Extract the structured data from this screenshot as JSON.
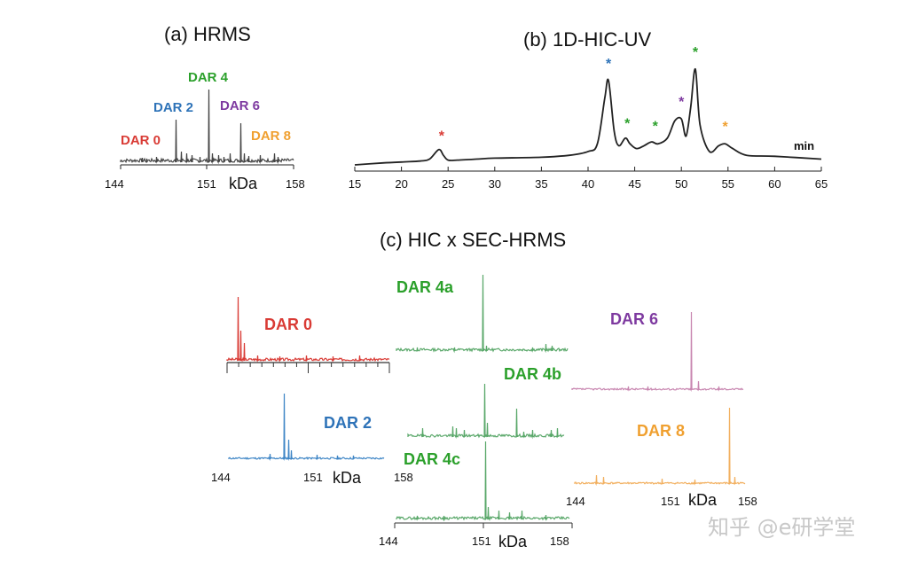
{
  "colors": {
    "dar0": "#d93b35",
    "dar2": "#2e73b8",
    "dar4": "#2ba02b",
    "dar6": "#7e3aa0",
    "dar8": "#f0a030",
    "trace": "#333333",
    "green_trace": "#5aa86a",
    "red_trace": "#d93b35",
    "blue_trace": "#3f86c6",
    "pink_trace": "#c886b0",
    "orange_trace": "#f2b060"
  },
  "panel_a": {
    "title": "(a) HRMS",
    "labels": [
      "DAR 0",
      "DAR 2",
      "DAR 4",
      "DAR 6",
      "DAR 8"
    ],
    "ticks": [
      "144",
      "151",
      "158"
    ],
    "unit": "kDa"
  },
  "panel_b": {
    "title": "(b) 1D-HIC-UV",
    "ticks": [
      "15",
      "20",
      "25",
      "30",
      "35",
      "40",
      "45",
      "50",
      "55",
      "60",
      "65"
    ],
    "xunit": "min",
    "star": "*"
  },
  "panel_c": {
    "title": "(c) HIC x SEC-HRMS",
    "dar0": "DAR 0",
    "dar2": "DAR 2",
    "dar4a": "DAR 4a",
    "dar4b": "DAR 4b",
    "dar4c": "DAR 4c",
    "dar6": "DAR 6",
    "dar8": "DAR 8",
    "ticks_left": [
      "144",
      "151",
      "158"
    ],
    "ticks_mid": [
      "144",
      "151",
      "158"
    ],
    "ticks_right": [
      "144",
      "151",
      "158"
    ],
    "unit": "kDa"
  },
  "watermark": "知乎 @e研学堂",
  "chart_data": [
    {
      "type": "line",
      "title": "(a) HRMS",
      "xlabel": "kDa",
      "xlim": [
        144,
        158
      ],
      "peaks": [
        {
          "name": "DAR 0",
          "x": 146.0
        },
        {
          "name": "DAR 2",
          "x": 148.9
        },
        {
          "name": "DAR 4",
          "x": 151.2
        },
        {
          "name": "DAR 6",
          "x": 153.6
        },
        {
          "name": "DAR 8",
          "x": 156.0
        }
      ]
    },
    {
      "type": "line",
      "title": "(b) 1D-HIC-UV",
      "xlabel": "min",
      "xlim": [
        15,
        65
      ],
      "series": [
        {
          "name": "UV trace",
          "x": [
            15,
            18,
            20,
            22,
            23,
            24,
            24.5,
            25,
            26,
            28,
            30,
            35,
            38,
            40,
            41,
            41.8,
            42.2,
            42.8,
            43.3,
            44,
            44.5,
            45.2,
            46,
            46.8,
            47.5,
            48.5,
            49.3,
            50,
            50.5,
            51,
            51.5,
            52,
            53,
            54,
            54.7,
            55.5,
            57,
            60,
            65
          ],
          "y": [
            0,
            0.02,
            0.03,
            0.04,
            0.06,
            0.16,
            0.1,
            0.05,
            0.05,
            0.06,
            0.07,
            0.08,
            0.1,
            0.14,
            0.22,
            0.7,
            0.88,
            0.35,
            0.2,
            0.28,
            0.22,
            0.17,
            0.2,
            0.24,
            0.22,
            0.28,
            0.46,
            0.48,
            0.3,
            0.6,
            1.0,
            0.42,
            0.14,
            0.2,
            0.22,
            0.17,
            0.1,
            0.09,
            0.06
          ]
        }
      ],
      "annotations": [
        {
          "x": 24.3,
          "label": "*",
          "series": "DAR 0"
        },
        {
          "x": 42.2,
          "label": "*",
          "series": "DAR 2"
        },
        {
          "x": 44.2,
          "label": "*",
          "series": "DAR 4"
        },
        {
          "x": 47.2,
          "label": "*",
          "series": "DAR 4"
        },
        {
          "x": 50.0,
          "label": "*",
          "series": "DAR 6"
        },
        {
          "x": 51.5,
          "label": "*",
          "series": "DAR 4"
        },
        {
          "x": 54.7,
          "label": "*",
          "series": "DAR 8"
        }
      ]
    },
    {
      "type": "line",
      "title": "(c) HIC x SEC-HRMS",
      "xlabel": "kDa",
      "xlim": [
        144,
        158
      ],
      "series": [
        {
          "name": "DAR 0",
          "peak_x": 145.0
        },
        {
          "name": "DAR 2",
          "peak_x": 148.8
        },
        {
          "name": "DAR 4a",
          "peak_x": 151.0
        },
        {
          "name": "DAR 4b",
          "peak_x": 151.2
        },
        {
          "name": "DAR 4c",
          "peak_x": 151.2
        },
        {
          "name": "DAR 6",
          "peak_x": 153.4
        },
        {
          "name": "DAR 8",
          "peak_x": 155.9
        }
      ]
    }
  ]
}
